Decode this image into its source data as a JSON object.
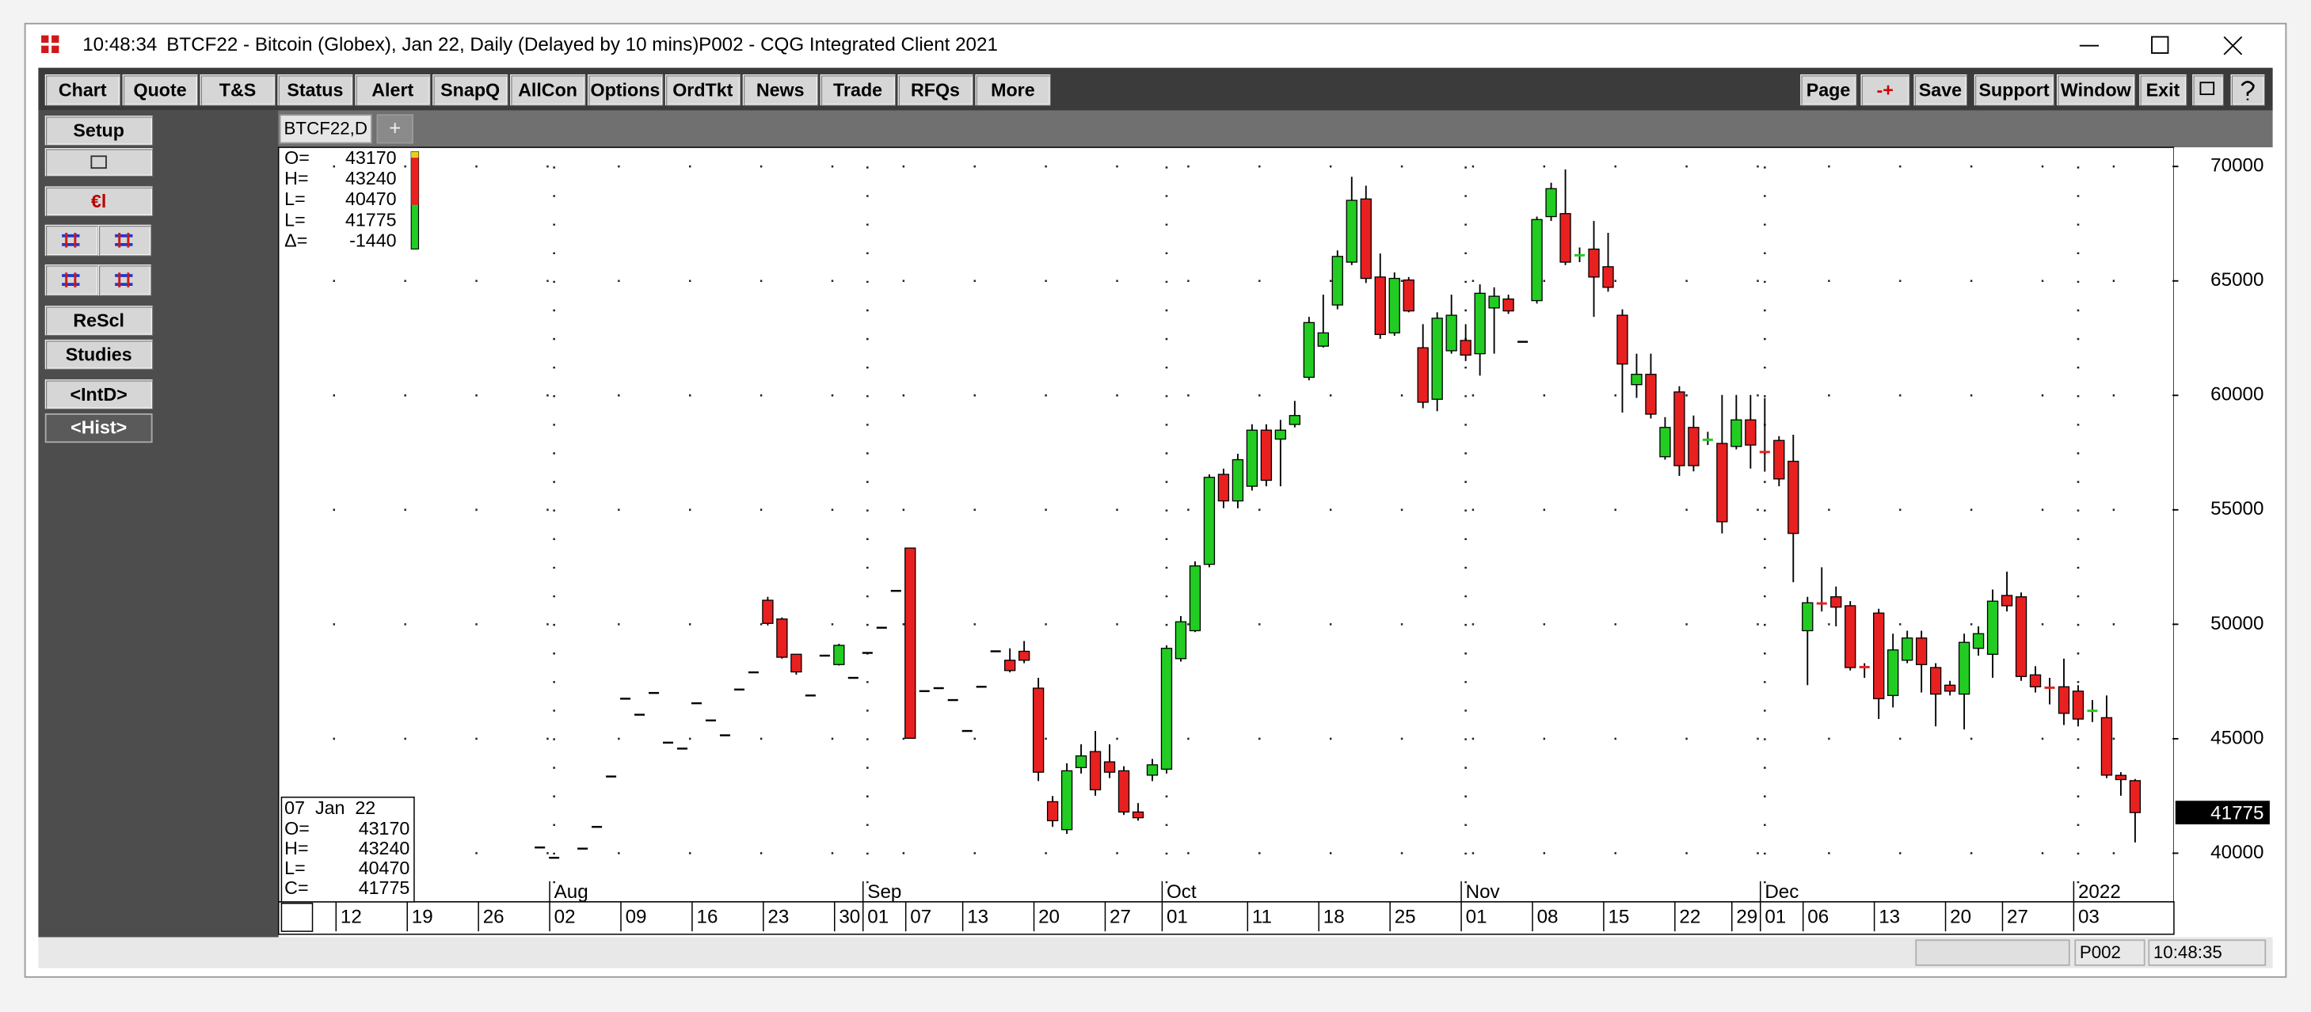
{
  "window": {
    "time": "10:48:34",
    "title": "BTCF22 - Bitcoin (Globex), Jan 22, Daily (Delayed by 10 mins)",
    "app": "P002 - CQG Integrated Client 2021"
  },
  "toolbar": {
    "left": [
      "Chart",
      "Quote",
      "T&S",
      "Status",
      "Alert",
      "SnapQ",
      "AllCon",
      "Options",
      "OrdTkt",
      "News",
      "Trade",
      "RFQs",
      "More"
    ],
    "right": [
      "Page",
      "-+",
      "Save",
      "Support",
      "Window",
      "Exit"
    ]
  },
  "sidebar": {
    "buttons": [
      "Setup",
      "€l",
      "ReScl",
      "Studies",
      "<IntD>",
      "<Hist>"
    ]
  },
  "tabs": [
    "BTCF22,D",
    "+"
  ],
  "info_box": [
    {
      "label": "O=",
      "value": 43170
    },
    {
      "label": "H=",
      "value": 43240
    },
    {
      "label": "L=",
      "value": 40470
    },
    {
      "label": "L=",
      "value": 41775
    },
    {
      "label": "Δ=",
      "value": -1440
    }
  ],
  "bar_box": {
    "date": "07  Jan  22",
    "rows": [
      {
        "label": "O=",
        "value": 43170
      },
      {
        "label": "H=",
        "value": 43240
      },
      {
        "label": "L=",
        "value": 40470
      },
      {
        "label": "C=",
        "value": 41775
      }
    ]
  },
  "last_price": 41775,
  "status": [
    "P002",
    "10:48:35"
  ],
  "chart_data": {
    "type": "candlestick",
    "up_color": "#22cc22",
    "down_color": "#e82020",
    "categories": [
      "Jul 12",
      "Jul 13",
      "Jul 14",
      "Jul 15",
      "Jul 16",
      "Jul 19",
      "Jul 20",
      "Jul 21",
      "Jul 22",
      "Jul 23",
      "Jul 26",
      "Jul 27",
      "Jul 28",
      "Jul 29",
      "Jul 30",
      "Aug 02",
      "Aug 03",
      "Aug 04",
      "Aug 05",
      "Aug 06",
      "Aug 09",
      "Aug 10",
      "Aug 11",
      "Aug 12",
      "Aug 13",
      "Aug 16",
      "Aug 17",
      "Aug 18",
      "Aug 19",
      "Aug 20",
      "Aug 23",
      "Aug 24",
      "Aug 25",
      "Aug 26",
      "Aug 27",
      "Aug 30",
      "Aug 31",
      "Sep 01",
      "Sep 02",
      "Sep 03",
      "Sep 07",
      "Sep 08",
      "Sep 09",
      "Sep 10",
      "Sep 13",
      "Sep 14",
      "Sep 15",
      "Sep 16",
      "Sep 17",
      "Sep 20",
      "Sep 21",
      "Sep 22",
      "Sep 23",
      "Sep 24",
      "Sep 27",
      "Sep 28",
      "Sep 29",
      "Sep 30",
      "Oct 01",
      "Oct 04",
      "Oct 05",
      "Oct 06",
      "Oct 07",
      "Oct 08",
      "Oct 11",
      "Oct 12",
      "Oct 13",
      "Oct 14",
      "Oct 15",
      "Oct 18",
      "Oct 19",
      "Oct 20",
      "Oct 21",
      "Oct 22",
      "Oct 25",
      "Oct 26",
      "Oct 27",
      "Oct 28",
      "Oct 29",
      "Nov 01",
      "Nov 02",
      "Nov 03",
      "Nov 04",
      "Nov 05",
      "Nov 08",
      "Nov 09",
      "Nov 10",
      "Nov 11",
      "Nov 12",
      "Nov 15",
      "Nov 16",
      "Nov 17",
      "Nov 18",
      "Nov 19",
      "Nov 22",
      "Nov 23",
      "Nov 24",
      "Nov 26",
      "Nov 29",
      "Nov 30",
      "Dec 01",
      "Dec 02",
      "Dec 03",
      "Dec 06",
      "Dec 07",
      "Dec 08",
      "Dec 09",
      "Dec 10",
      "Dec 13",
      "Dec 14",
      "Dec 15",
      "Dec 16",
      "Dec 17",
      "Dec 20",
      "Dec 21",
      "Dec 22",
      "Dec 23",
      "Dec 27",
      "Dec 28",
      "Dec 29",
      "Dec 30",
      "Dec 31",
      "Jan 03",
      "Jan 04",
      "Jan 05",
      "Jan 06",
      "Jan 07"
    ],
    "open": [
      null,
      null,
      null,
      null,
      null,
      null,
      null,
      null,
      null,
      null,
      null,
      null,
      null,
      null,
      40250,
      39800,
      null,
      40200,
      41150,
      43350,
      46750,
      46050,
      47000,
      44830,
      44570,
      46550,
      45800,
      45150,
      47150,
      47900,
      51050,
      50230,
      48690,
      46890,
      48630,
      48240,
      47660,
      48750,
      49850,
      51460,
      53330,
      47080,
      47210,
      46690,
      45340,
      47270,
      48820,
      48430,
      48820,
      47210,
      42250,
      41030,
      43740,
      44440,
      43990,
      43600,
      41800,
      43410,
      43670,
      48500,
      49720,
      52620,
      56550,
      55390,
      56030,
      58480,
      58090,
      58730,
      60790,
      62150,
      63950,
      65820,
      68580,
      65170,
      62730,
      65040,
      62080,
      59830,
      61950,
      62400,
      61820,
      63820,
      64210,
      62340,
      64140,
      67810,
      67940,
      66100,
      66390,
      65620,
      63500,
      60470,
      60920,
      57320,
      60150,
      58600,
      58030,
      57900,
      57770,
      58930,
      57540,
      58030,
      57120,
      49720,
      50940,
      51200,
      50810,
      48150,
      50490,
      46890,
      48430,
      49400,
      48110,
      47340,
      46950,
      48950,
      48690,
      51260,
      51200,
      47790,
      47250,
      47270,
      47080,
      46200,
      45920,
      43400,
      43170
    ],
    "high": [
      null,
      null,
      null,
      null,
      null,
      null,
      null,
      null,
      null,
      null,
      null,
      null,
      null,
      null,
      40250,
      39800,
      null,
      40200,
      41150,
      43350,
      46750,
      46050,
      47000,
      44830,
      44570,
      46550,
      45800,
      45150,
      47150,
      47900,
      51200,
      50300,
      48700,
      46890,
      48630,
      49150,
      47660,
      48750,
      49850,
      51460,
      53330,
      47080,
      47210,
      46690,
      45340,
      47270,
      48820,
      48950,
      49270,
      47660,
      42500,
      43930,
      44760,
      45340,
      44760,
      43800,
      42190,
      44120,
      49080,
      50360,
      52750,
      56550,
      56800,
      57450,
      58740,
      58740,
      58930,
      59760,
      63430,
      64400,
      66330,
      69550,
      69160,
      66200,
      65370,
      65170,
      63110,
      63630,
      64400,
      63110,
      64850,
      64720,
      64400,
      62340,
      67810,
      69290,
      69870,
      66460,
      67620,
      67100,
      63760,
      61820,
      61820,
      59050,
      60400,
      59120,
      58410,
      60020,
      60020,
      60020,
      59890,
      58220,
      58280,
      51200,
      52490,
      51650,
      51010,
      48300,
      50680,
      49590,
      49720,
      49720,
      48300,
      47530,
      49590,
      49910,
      51520,
      52300,
      51390,
      48170,
      47660,
      48500,
      47340,
      46690,
      46890,
      43540,
      43240
    ],
    "low": [
      null,
      null,
      null,
      null,
      null,
      null,
      null,
      null,
      null,
      null,
      null,
      null,
      null,
      null,
      40250,
      39800,
      null,
      40200,
      41150,
      43350,
      46750,
      46050,
      47000,
      44830,
      44570,
      46550,
      45800,
      45150,
      47150,
      47900,
      49950,
      48500,
      47800,
      46890,
      48630,
      48200,
      47660,
      48750,
      49850,
      51460,
      45020,
      47080,
      47210,
      46690,
      45340,
      47270,
      48820,
      47900,
      48300,
      43150,
      41150,
      40840,
      43480,
      42510,
      43280,
      41670,
      41420,
      43150,
      43480,
      48370,
      49660,
      52490,
      55070,
      55070,
      55840,
      56030,
      56030,
      58600,
      60660,
      62090,
      63760,
      65690,
      64910,
      62470,
      62600,
      63630,
      59440,
      59310,
      61820,
      61500,
      60860,
      61820,
      63560,
      62340,
      64010,
      67620,
      65690,
      65820,
      63430,
      64530,
      59250,
      59890,
      58990,
      57190,
      56480,
      56680,
      57830,
      53970,
      57640,
      56800,
      56670,
      56030,
      51840,
      47340,
      50560,
      49910,
      47980,
      47660,
      45860,
      46370,
      48300,
      47020,
      45540,
      46890,
      45410,
      48630,
      47660,
      50560,
      47530,
      47020,
      46500,
      45600,
      45540,
      45730,
      43280,
      42510,
      40470
    ],
    "close": [
      null,
      null,
      null,
      null,
      null,
      null,
      null,
      null,
      null,
      null,
      null,
      null,
      null,
      null,
      40250,
      39800,
      null,
      40200,
      41150,
      43350,
      46750,
      46050,
      47000,
      44830,
      44570,
      46550,
      45800,
      45150,
      47150,
      47900,
      50040,
      48560,
      47920,
      46890,
      48630,
      49080,
      47660,
      48750,
      49850,
      51460,
      45020,
      47080,
      47210,
      46690,
      45340,
      47270,
      48820,
      47980,
      48430,
      43540,
      41420,
      43600,
      44250,
      42770,
      43540,
      41800,
      41550,
      43860,
      48950,
      50110,
      52550,
      56420,
      55390,
      57190,
      58480,
      56290,
      58480,
      59120,
      63180,
      62730,
      66070,
      68520,
      65110,
      62660,
      65110,
      63690,
      59700,
      63370,
      63500,
      61760,
      64460,
      64330,
      63690,
      62340,
      67680,
      69030,
      65820,
      66140,
      65170,
      64720,
      61370,
      60920,
      59180,
      58600,
      56930,
      56930,
      58090,
      54480,
      58930,
      57830,
      57510,
      56350,
      53970,
      50940,
      50880,
      50750,
      48110,
      48110,
      46750,
      48880,
      49400,
      48240,
      46950,
      47080,
      49210,
      49590,
      51010,
      50810,
      47720,
      47270,
      47210,
      46110,
      45860,
      46240,
      43410,
      43215,
      41775
    ],
    "ylim": [
      37875,
      70770
    ],
    "yticks": [
      40000,
      45000,
      50000,
      55000,
      60000,
      65000,
      70000
    ],
    "grid": true,
    "xticks": [
      {
        "value": "Jul 12",
        "label": "12"
      },
      {
        "value": "Jul 19",
        "label": "19"
      },
      {
        "value": "Jul 26",
        "label": "26"
      },
      {
        "value": "Aug 02",
        "label": "02"
      },
      {
        "value": "Aug 09",
        "label": "09"
      },
      {
        "value": "Aug 16",
        "label": "16"
      },
      {
        "value": "Aug 23",
        "label": "23"
      },
      {
        "value": "Aug 30",
        "label": "30"
      },
      {
        "value": "Sep 01",
        "label": "01"
      },
      {
        "value": "Sep 07",
        "label": "07"
      },
      {
        "value": "Sep 13",
        "label": "13"
      },
      {
        "value": "Sep 20",
        "label": "20"
      },
      {
        "value": "Sep 27",
        "label": "27"
      },
      {
        "value": "Oct 01",
        "label": "01"
      },
      {
        "value": "Oct 11",
        "label": "11"
      },
      {
        "value": "Oct 18",
        "label": "18"
      },
      {
        "value": "Oct 25",
        "label": "25"
      },
      {
        "value": "Nov 01",
        "label": "01"
      },
      {
        "value": "Nov 08",
        "label": "08"
      },
      {
        "value": "Nov 15",
        "label": "15"
      },
      {
        "value": "Nov 22",
        "label": "22"
      },
      {
        "value": "Nov 29",
        "label": "29"
      },
      {
        "value": "Dec 01",
        "label": "01"
      },
      {
        "value": "Dec 06",
        "label": "06"
      },
      {
        "value": "Dec 13",
        "label": "13"
      },
      {
        "value": "Dec 20",
        "label": "20"
      },
      {
        "value": "Dec 27",
        "label": "27"
      },
      {
        "value": "Jan 03",
        "label": "03"
      }
    ],
    "month_labels": [
      {
        "value": "Aug 02",
        "label": "Aug"
      },
      {
        "value": "Sep 01",
        "label": "Sep"
      },
      {
        "value": "Oct 01",
        "label": "Oct"
      },
      {
        "value": "Nov 01",
        "label": "Nov"
      },
      {
        "value": "Dec 01",
        "label": "Dec"
      },
      {
        "value": "Jan 03",
        "label": "2022"
      }
    ]
  }
}
